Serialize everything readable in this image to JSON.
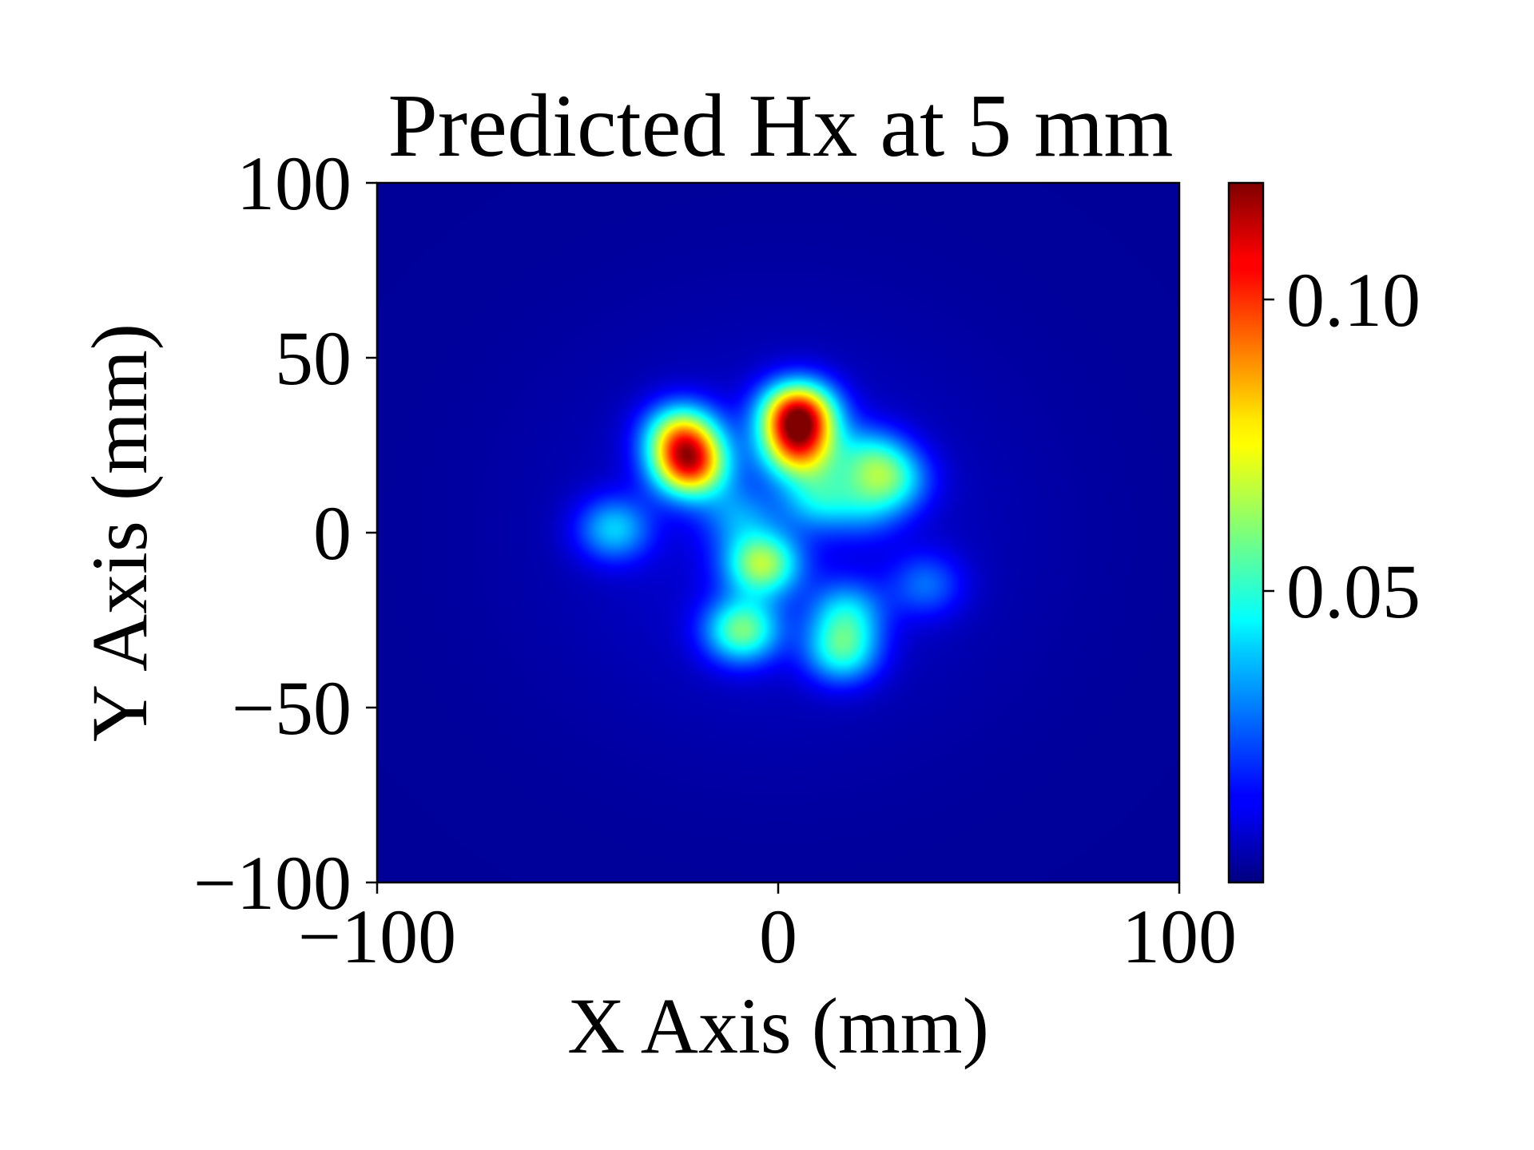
{
  "chart_data": {
    "type": "heatmap",
    "title": "Predicted Hx at 5 mm",
    "xlabel": "X Axis (mm)",
    "ylabel": "Y Axis (mm)",
    "xlim": [
      -100,
      100
    ],
    "ylim": [
      -100,
      100
    ],
    "x_ticks": [
      -100,
      0,
      100
    ],
    "x_tick_labels": [
      "−100",
      "0",
      "100"
    ],
    "y_ticks": [
      -100,
      -50,
      0,
      50,
      100
    ],
    "y_tick_labels": [
      "−100",
      "−50",
      "0",
      "50",
      "100"
    ],
    "colormap": "jet",
    "colorbar": {
      "vmin": 0.0,
      "vmax": 0.12,
      "ticks": [
        0.05,
        0.1
      ],
      "tick_labels": [
        "0.05",
        "0.10"
      ]
    },
    "background_level": 0.003,
    "hotspots": [
      {
        "x": 5,
        "y": 34,
        "peak": 0.095
      },
      {
        "x": -22,
        "y": 19,
        "peak": 0.08
      },
      {
        "x": -24,
        "y": 28,
        "peak": 0.06
      },
      {
        "x": 5,
        "y": 24,
        "peak": 0.065
      },
      {
        "x": -4,
        "y": -9,
        "peak": 0.055
      },
      {
        "x": -9,
        "y": -28,
        "peak": 0.05
      },
      {
        "x": 16,
        "y": -34,
        "peak": 0.04
      },
      {
        "x": 17,
        "y": -23,
        "peak": 0.03
      },
      {
        "x": 23,
        "y": 21,
        "peak": 0.032
      },
      {
        "x": 29,
        "y": 15,
        "peak": 0.03
      },
      {
        "x": 10,
        "y": 10,
        "peak": 0.03
      },
      {
        "x": -41,
        "y": 1,
        "peak": 0.032
      },
      {
        "x": 37,
        "y": -15,
        "peak": 0.02
      },
      {
        "x": -10,
        "y": 5,
        "peak": 0.02
      },
      {
        "x": 22,
        "y": 8,
        "peak": 0.02
      }
    ],
    "grid": false,
    "legend": "none"
  }
}
